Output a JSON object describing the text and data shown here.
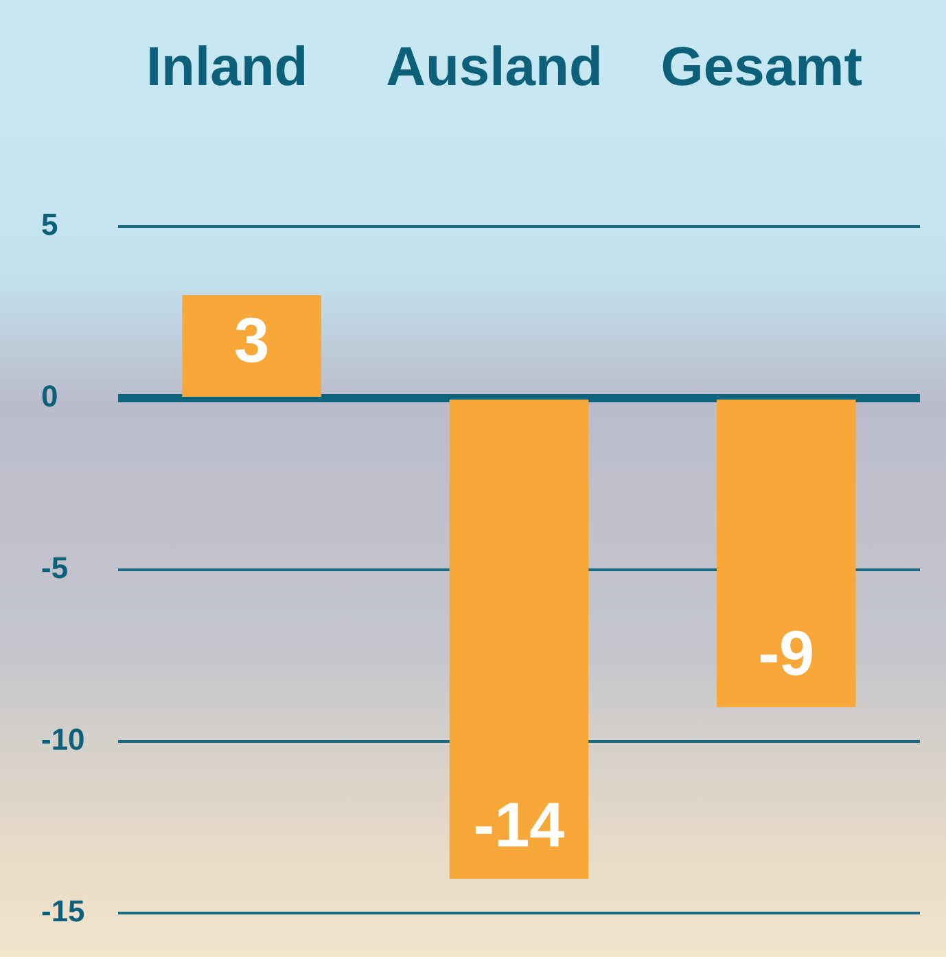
{
  "chart_data": {
    "type": "bar",
    "categories": [
      "Inland",
      "Ausland",
      "Gesamt"
    ],
    "values": [
      3,
      -14,
      -9
    ],
    "color": "#f8a838",
    "ylim": [
      -15,
      5
    ],
    "yticks": [
      -15,
      -10,
      -5,
      0,
      5
    ],
    "grid": "y",
    "data_labels": true,
    "ref_lines": [
      {
        "axis": "y",
        "value": 0,
        "color": "#0f6580"
      }
    ]
  }
}
